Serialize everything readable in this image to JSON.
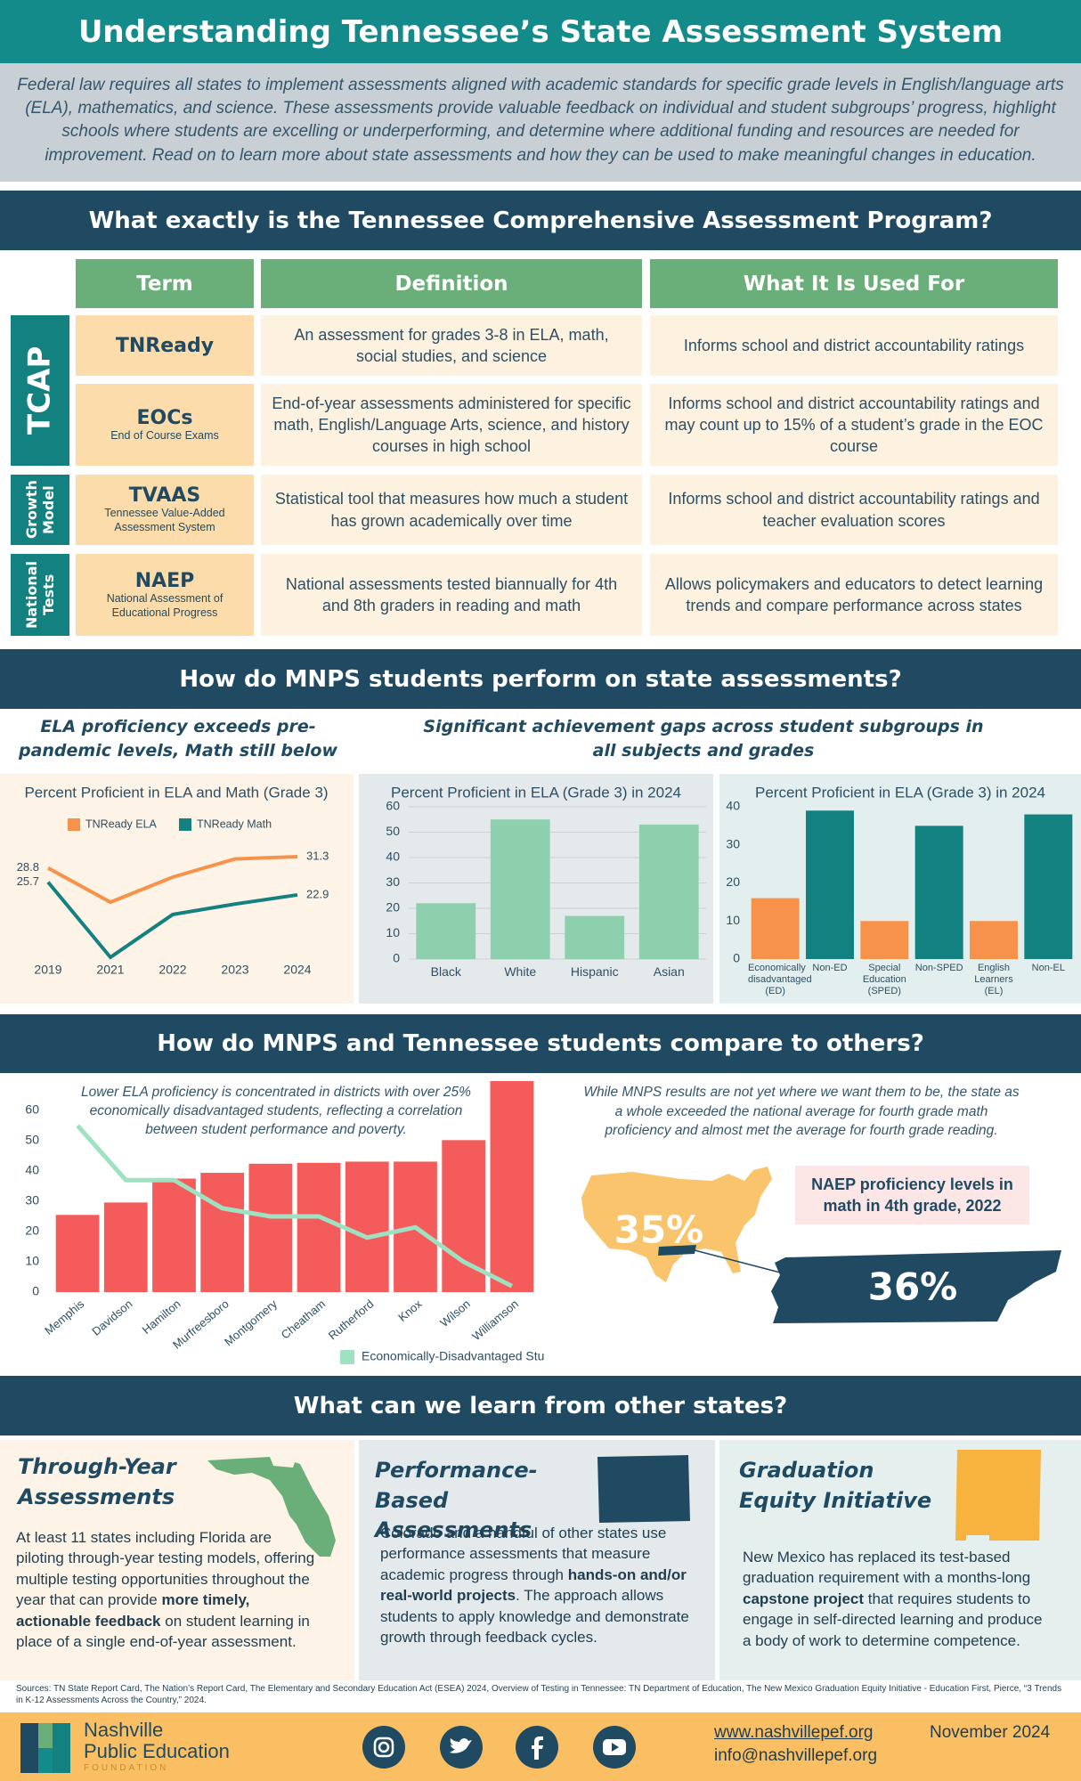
{
  "header": {
    "title": "Understanding Tennessee’s State Assessment System",
    "intro": "Federal law requires all states to implement assessments aligned with academic standards for specific grade levels in English/language arts (ELA), mathematics, and science. These assessments provide valuable feedback on individual and student subgroups’ progress, highlight schools where students are excelling or underperforming, and determine where additional funding and resources are needed for improvement. Read on to learn more about state assessments and how they can be used to make meaningful changes in education."
  },
  "tcap_table": {
    "title": "What exactly is the Tennessee Comprehensive Assessment Program?",
    "columns": [
      "Term",
      "Definition",
      "What It Is Used For"
    ],
    "groups": [
      "TCAP",
      "Growth Model",
      "National Tests"
    ],
    "rows": [
      {
        "term": "TNReady",
        "definition": "An assessment for grades 3-8 in ELA, math, social studies, and science",
        "used_for": "Informs school and district accountability ratings"
      },
      {
        "term": "EOCs",
        "term_note": "End of Course Exams",
        "definition": "End-of-year assessments administered for specific math, English/Language Arts, science, and history courses in high school",
        "used_for": "Informs school and district accountability ratings and may count up to 15% of a student’s grade in the EOC course"
      },
      {
        "term": "TVAAS",
        "term_note": "Tennessee Value-Added Assessment System",
        "definition": "Statistical tool that measures how much a student has grown academically over time",
        "used_for": "Informs school and district accountability ratings and teacher evaluation scores"
      },
      {
        "term": "NAEP",
        "term_note": "National Assessment of Educational Progress",
        "definition": "National assessments tested biannually for 4th and 8th graders in reading and math",
        "used_for": "Allows policymakers and educators to detect learning trends and compare performance across states"
      }
    ]
  },
  "performance": {
    "title": "How do MNPS students perform on state assessments?",
    "left_heading": "ELA proficiency exceeds pre-pandemic levels, Math still below",
    "right_heading": "Significant achievement gaps across student subgroups in all subjects and grades"
  },
  "comparison": {
    "title": "How do MNPS and Tennessee students compare to others?",
    "note": "While MNPS results are not yet where we want them to be, the state as a whole exceeded the national average for fourth grade math proficiency and almost met the average for fourth grade reading.",
    "naep": {
      "heading": "NAEP proficiency levels in math in 4th grade, 2022",
      "us": {
        "value": 35,
        "label": "35%"
      },
      "tennessee": {
        "value": 36,
        "label": "36%"
      }
    }
  },
  "lessons": {
    "title": "What can we learn from other states?",
    "cards": [
      {
        "title": "Through-Year Assessments",
        "text_before": "At least 11 states including Florida are piloting through-year testing models, offering multiple testing opportunities throughout the year that can provide ",
        "bold": "more timely, actionable feedback",
        "text_after": " on student learning in place of a single end-of-year assessment."
      },
      {
        "title": "Performance-Based Assessments",
        "text_before": "Colorado and a handful of other states use performance assessments that measure academic progress through ",
        "bold": "hands-on and/or real-world projects",
        "text_after": ". The approach allows students to apply knowledge and demonstrate growth through feedback cycles."
      },
      {
        "title": "Graduation Equity Initiative",
        "text_before": "New Mexico has replaced its test-based graduation requirement with a months-long ",
        "bold": "capstone project",
        "text_after": " that requires students to engage in self-directed learning and produce a body of work to determine competence."
      }
    ]
  },
  "sources": "Sources: TN State Report Card, The Nation’s Report Card, The Elementary and Secondary Education Act (ESEA) 2024, Overview of Testing in Tennessee: TN Department of Education, The New Mexico Graduation Equity Initiative - Education First, Pierce, “3 Trends in K-12 Assessments Across the Country,” 2024.",
  "footer": {
    "org": [
      "Nashville",
      "Public Education",
      "FOUNDATION"
    ],
    "website": "www.nashvillepef.org",
    "email": "info@nashvillepef.org",
    "date": "November 2024"
  },
  "chart_data": [
    {
      "type": "line",
      "title": "Percent Proficient in ELA and Math (Grade 3)",
      "categories": [
        "2019",
        "2021",
        "2022",
        "2023",
        "2024"
      ],
      "series": [
        {
          "name": "TNReady ELA",
          "color": "#f7924a",
          "values": [
            28.8,
            21.3,
            26.8,
            30.8,
            31.3
          ]
        },
        {
          "name": "TNReady Math",
          "color": "#13817f",
          "values": [
            25.7,
            9.2,
            18.6,
            20.9,
            22.9
          ]
        }
      ]
    },
    {
      "type": "bar",
      "title": "Percent Proficient in ELA (Grade 3) in 2024",
      "categories": [
        "Black",
        "White",
        "Hispanic",
        "Asian"
      ],
      "values": [
        22,
        55,
        17,
        53
      ],
      "color": "#8ecfae",
      "ylim": [
        0,
        60
      ],
      "yticks": [
        0,
        10,
        20,
        30,
        40,
        50,
        60
      ],
      "grid": true
    },
    {
      "type": "bar",
      "title": "Percent Proficient in ELA (Grade 3) in 2024",
      "categories": [
        "Economically disadvantaged (ED)",
        "Non-ED",
        "Special Education (SPED)",
        "Non-SPED",
        "English Learners (EL)",
        "Non-EL"
      ],
      "values": [
        16,
        39,
        10,
        35,
        10,
        38
      ],
      "colors": [
        "#f7924a",
        "#13817f",
        "#f7924a",
        "#13817f",
        "#f7924a",
        "#13817f"
      ],
      "ylim": [
        0,
        40
      ],
      "yticks": [
        0,
        10,
        20,
        30,
        40
      ],
      "grid": false
    },
    {
      "type": "combo",
      "annotation": "Lower ELA proficiency is concentrated in districts with over 25% economically disadvantaged students, reflecting a correlation between student performance and poverty.",
      "categories": [
        "Memphis",
        "Davidson",
        "Hamilton",
        "Murfreesboro",
        "Montgomery",
        "Cheatham",
        "Rutherford",
        "Knox",
        "Wilson",
        "Williamson"
      ],
      "series": [
        {
          "color": "#f45b5b",
          "values": [
            25.5,
            29.6,
            37.5,
            39.4,
            42.4,
            42.7,
            43.1,
            43.1,
            50.2,
            69.7
          ]
        },
        {
          "name": "Economically-Disadvantaged Students",
          "type": "line",
          "color": "#9fe2c2",
          "values": [
            55,
            37,
            37,
            27.7,
            25,
            25,
            18,
            21.4,
            10,
            2
          ]
        }
      ],
      "ylim": [
        0,
        70
      ],
      "yticks": [
        0,
        10,
        20,
        30,
        40,
        50,
        60
      ],
      "grid": false
    }
  ]
}
